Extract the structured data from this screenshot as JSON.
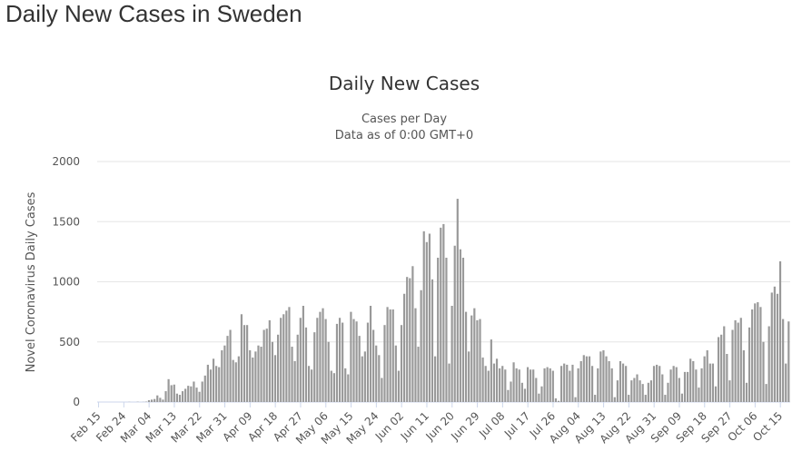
{
  "page": {
    "title": "Daily New Cases in Sweden"
  },
  "chart_data": {
    "type": "bar",
    "title": "Daily New Cases",
    "subtitle": [
      "Cases per Day",
      "Data as of 0:00 GMT+0"
    ],
    "xlabel": "",
    "ylabel": "Novel Coronavirus Daily Cases",
    "ylim": [
      0,
      2000
    ],
    "yticks": [
      0,
      500,
      1000,
      1500,
      2000
    ],
    "grid": true,
    "bar_color": "#999999",
    "xtick_labels": [
      "Feb 15",
      "Feb 24",
      "Mar 04",
      "Mar 13",
      "Mar 22",
      "Mar 31",
      "Apr 09",
      "Apr 18",
      "Apr 27",
      "May 06",
      "May 15",
      "May 24",
      "Jun 02",
      "Jun 11",
      "Jun 20",
      "Jun 29",
      "Jul 08",
      "Jul 17",
      "Jul 26",
      "Aug 04",
      "Aug 13",
      "Aug 22",
      "Aug 31",
      "Sep 09",
      "Sep 18",
      "Sep 27",
      "Oct 06",
      "Oct 15"
    ],
    "categories": [
      "Feb 15",
      "Feb 16",
      "Feb 17",
      "Feb 18",
      "Feb 19",
      "Feb 20",
      "Feb 21",
      "Feb 22",
      "Feb 23",
      "Feb 24",
      "Feb 25",
      "Feb 26",
      "Feb 27",
      "Feb 28",
      "Feb 29",
      "Mar 01",
      "Mar 02",
      "Mar 03",
      "Mar 04",
      "Mar 05",
      "Mar 06",
      "Mar 07",
      "Mar 08",
      "Mar 09",
      "Mar 10",
      "Mar 11",
      "Mar 12",
      "Mar 13",
      "Mar 14",
      "Mar 15",
      "Mar 16",
      "Mar 17",
      "Mar 18",
      "Mar 19",
      "Mar 20",
      "Mar 21",
      "Mar 22",
      "Mar 23",
      "Mar 24",
      "Mar 25",
      "Mar 26",
      "Mar 27",
      "Mar 28",
      "Mar 29",
      "Mar 30",
      "Mar 31",
      "Apr 01",
      "Apr 02",
      "Apr 03",
      "Apr 04",
      "Apr 05",
      "Apr 06",
      "Apr 07",
      "Apr 08",
      "Apr 09",
      "Apr 10",
      "Apr 11",
      "Apr 12",
      "Apr 13",
      "Apr 14",
      "Apr 15",
      "Apr 16",
      "Apr 17",
      "Apr 18",
      "Apr 19",
      "Apr 20",
      "Apr 21",
      "Apr 22",
      "Apr 23",
      "Apr 24",
      "Apr 25",
      "Apr 26",
      "Apr 27",
      "Apr 28",
      "Apr 29",
      "Apr 30",
      "May 01",
      "May 02",
      "May 03",
      "May 04",
      "May 05",
      "May 06",
      "May 07",
      "May 08",
      "May 09",
      "May 10",
      "May 11",
      "May 12",
      "May 13",
      "May 14",
      "May 15",
      "May 16",
      "May 17",
      "May 18",
      "May 19",
      "May 20",
      "May 21",
      "May 22",
      "May 23",
      "May 24",
      "May 25",
      "May 26",
      "May 27",
      "May 28",
      "May 29",
      "May 30",
      "May 31",
      "Jun 01",
      "Jun 02",
      "Jun 03",
      "Jun 04",
      "Jun 05",
      "Jun 06",
      "Jun 07",
      "Jun 08",
      "Jun 09",
      "Jun 10",
      "Jun 11",
      "Jun 12",
      "Jun 13",
      "Jun 14",
      "Jun 15",
      "Jun 16",
      "Jun 17",
      "Jun 18",
      "Jun 19",
      "Jun 20",
      "Jun 21",
      "Jun 22",
      "Jun 23",
      "Jun 24",
      "Jun 25",
      "Jun 26",
      "Jun 27",
      "Jun 28",
      "Jun 29",
      "Jun 30",
      "Jul 01",
      "Jul 02",
      "Jul 03",
      "Jul 04",
      "Jul 05",
      "Jul 06",
      "Jul 07",
      "Jul 08",
      "Jul 09",
      "Jul 10",
      "Jul 11",
      "Jul 12",
      "Jul 13",
      "Jul 14",
      "Jul 15",
      "Jul 16",
      "Jul 17",
      "Jul 18",
      "Jul 19",
      "Jul 20",
      "Jul 21",
      "Jul 22",
      "Jul 23",
      "Jul 24",
      "Jul 25",
      "Jul 26",
      "Jul 27",
      "Jul 28",
      "Jul 29",
      "Jul 30",
      "Jul 31",
      "Aug 01",
      "Aug 02",
      "Aug 03",
      "Aug 04",
      "Aug 05",
      "Aug 06",
      "Aug 07",
      "Aug 08",
      "Aug 09",
      "Aug 10",
      "Aug 11",
      "Aug 12",
      "Aug 13",
      "Aug 14",
      "Aug 15",
      "Aug 16",
      "Aug 17",
      "Aug 18",
      "Aug 19",
      "Aug 20",
      "Aug 21",
      "Aug 22",
      "Aug 23",
      "Aug 24",
      "Aug 25",
      "Aug 26",
      "Aug 27",
      "Aug 28",
      "Aug 29",
      "Aug 30",
      "Aug 31",
      "Sep 01",
      "Sep 02",
      "Sep 03",
      "Sep 04",
      "Sep 05",
      "Sep 06",
      "Sep 07",
      "Sep 08",
      "Sep 09",
      "Sep 10",
      "Sep 11",
      "Sep 12",
      "Sep 13",
      "Sep 14",
      "Sep 15",
      "Sep 16",
      "Sep 17",
      "Sep 18",
      "Sep 19",
      "Sep 20",
      "Sep 21",
      "Sep 22",
      "Sep 23",
      "Sep 24",
      "Sep 25",
      "Sep 26",
      "Sep 27",
      "Sep 28",
      "Sep 29",
      "Sep 30",
      "Oct 01",
      "Oct 02",
      "Oct 03",
      "Oct 04",
      "Oct 05",
      "Oct 06",
      "Oct 07",
      "Oct 08",
      "Oct 09",
      "Oct 10",
      "Oct 11",
      "Oct 12",
      "Oct 13",
      "Oct 14",
      "Oct 15",
      "Oct 16",
      "Oct 17",
      "Oct 18"
    ],
    "values": [
      0,
      0,
      0,
      0,
      0,
      0,
      0,
      0,
      0,
      0,
      0,
      1,
      0,
      0,
      2,
      0,
      1,
      3,
      15,
      20,
      25,
      55,
      35,
      20,
      90,
      190,
      140,
      145,
      70,
      60,
      90,
      110,
      135,
      130,
      170,
      120,
      85,
      170,
      220,
      310,
      270,
      360,
      300,
      290,
      430,
      470,
      550,
      600,
      350,
      330,
      380,
      730,
      640,
      640,
      430,
      370,
      420,
      470,
      460,
      600,
      610,
      680,
      500,
      390,
      560,
      700,
      730,
      760,
      790,
      460,
      340,
      560,
      700,
      800,
      620,
      300,
      270,
      580,
      700,
      750,
      780,
      690,
      500,
      260,
      240,
      650,
      700,
      660,
      280,
      230,
      750,
      690,
      670,
      550,
      380,
      420,
      660,
      800,
      600,
      470,
      390,
      200,
      640,
      790,
      770,
      770,
      470,
      260,
      640,
      900,
      1040,
      1030,
      1130,
      780,
      460,
      930,
      1420,
      1330,
      1400,
      1020,
      380,
      1200,
      1450,
      1480,
      1200,
      320,
      800,
      1300,
      1690,
      1270,
      1200,
      750,
      420,
      720,
      780,
      680,
      690,
      370,
      300,
      260,
      520,
      320,
      360,
      280,
      300,
      270,
      100,
      170,
      330,
      280,
      270,
      160,
      110,
      290,
      270,
      270,
      200,
      70,
      130,
      280,
      290,
      280,
      260,
      30,
      10,
      300,
      320,
      310,
      260,
      310,
      40,
      280,
      340,
      390,
      380,
      380,
      300,
      60,
      280,
      420,
      430,
      380,
      340,
      280,
      40,
      180,
      340,
      320,
      300,
      60,
      180,
      200,
      230,
      180,
      150,
      60,
      160,
      180,
      300,
      310,
      300,
      230,
      60,
      160,
      270,
      300,
      290,
      200,
      70,
      250,
      250,
      360,
      340,
      270,
      120,
      280,
      380,
      430,
      320,
      320,
      130,
      540,
      560,
      630,
      400,
      180,
      600,
      680,
      660,
      700,
      430,
      160,
      620,
      770,
      820,
      830,
      790,
      500,
      150,
      630,
      910,
      960,
      900,
      1170,
      690,
      320,
      670
    ]
  }
}
